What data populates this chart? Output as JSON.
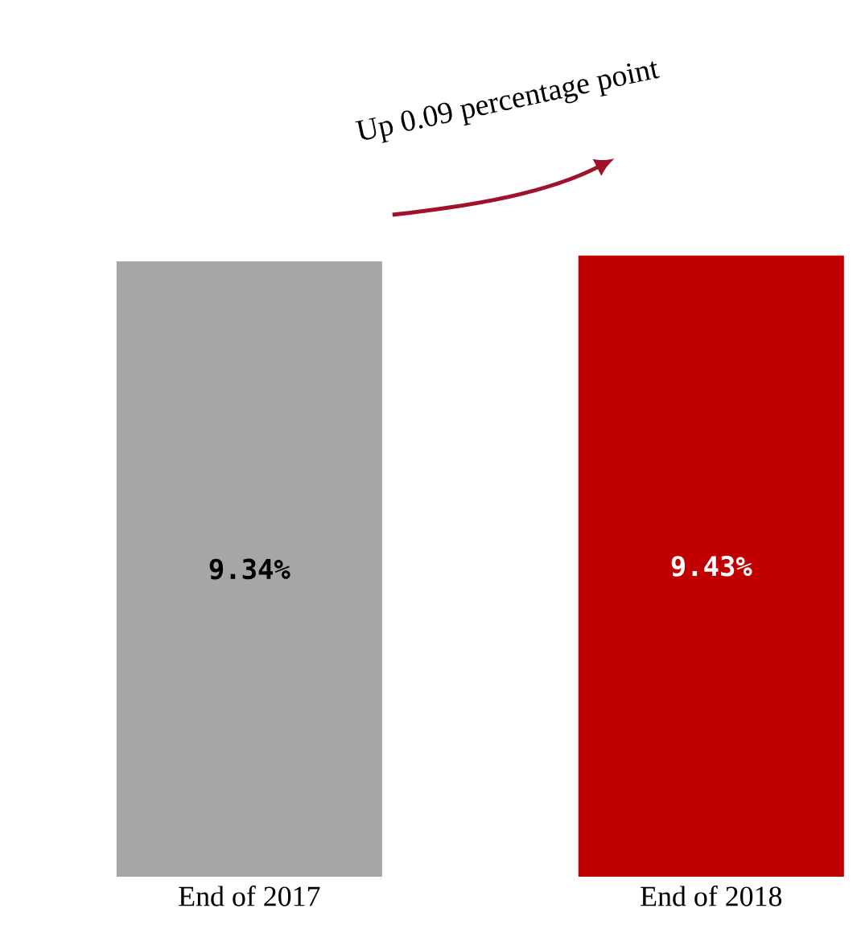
{
  "chart_data": {
    "type": "bar",
    "categories": [
      "End of 2017",
      "End of 2018"
    ],
    "values": [
      9.34,
      9.43
    ],
    "value_labels": [
      "9.34%",
      "9.43%"
    ],
    "colors": [
      "#a6a6a6",
      "#c00000"
    ],
    "tick_labels": "x",
    "annotations": [
      "Up 0.09 percentage point"
    ]
  }
}
